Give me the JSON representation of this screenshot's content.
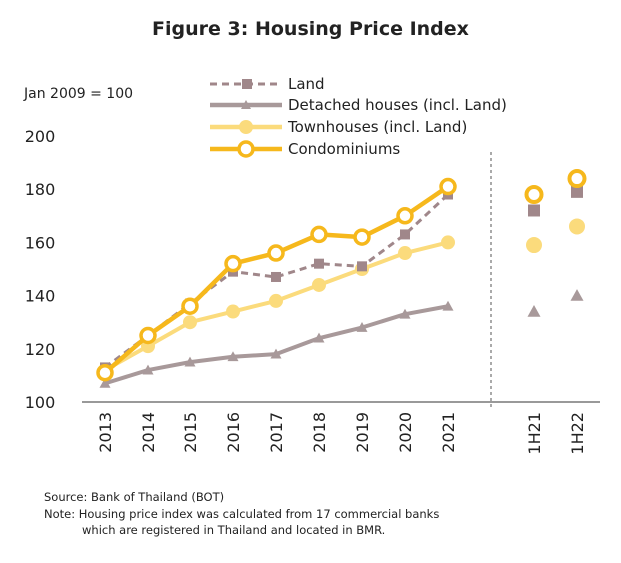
{
  "title": "Figure 3: Housing Price Index",
  "base_note": "Jan 2009 = 100",
  "footnotes": {
    "source": "Source: Bank of Thailand (BOT)",
    "note_line1": "Note: Housing price index was calculated from 17 commercial banks",
    "note_line2": "which are registered in Thailand and located in BMR."
  },
  "colors": {
    "land": "#a0878a",
    "detached": "#a8999a",
    "townhouses": "#fbdb7c",
    "condominiums": "#f6b81c"
  },
  "chart_data": {
    "type": "line",
    "title": "Figure 3: Housing Price Index",
    "ylabel": "",
    "xlabel": "",
    "ylim": [
      100,
      200
    ],
    "yticks": [
      100,
      120,
      140,
      160,
      180,
      200
    ],
    "categories": [
      "2013",
      "2014",
      "2015",
      "2016",
      "2017",
      "2018",
      "2019",
      "2020",
      "2021"
    ],
    "half_year_categories": [
      "1H21",
      "1H22"
    ],
    "legend_position": "top",
    "grid": false,
    "series": [
      {
        "name": "Land",
        "values": [
          113,
          125,
          137,
          149,
          147,
          152,
          151,
          163,
          178
        ],
        "half_year_values": [
          172,
          179
        ]
      },
      {
        "name": "Detached houses (incl. Land)",
        "values": [
          107,
          112,
          115,
          117,
          118,
          124,
          128,
          133,
          136
        ],
        "half_year_values": [
          134,
          140
        ]
      },
      {
        "name": "Townhouses (incl. Land)",
        "values": [
          112,
          121,
          130,
          134,
          138,
          144,
          150,
          156,
          160
        ],
        "half_year_values": [
          159,
          166
        ]
      },
      {
        "name": "Condominiums",
        "values": [
          111,
          125,
          136,
          152,
          156,
          163,
          162,
          170,
          181
        ],
        "half_year_values": [
          178,
          184
        ]
      }
    ]
  }
}
